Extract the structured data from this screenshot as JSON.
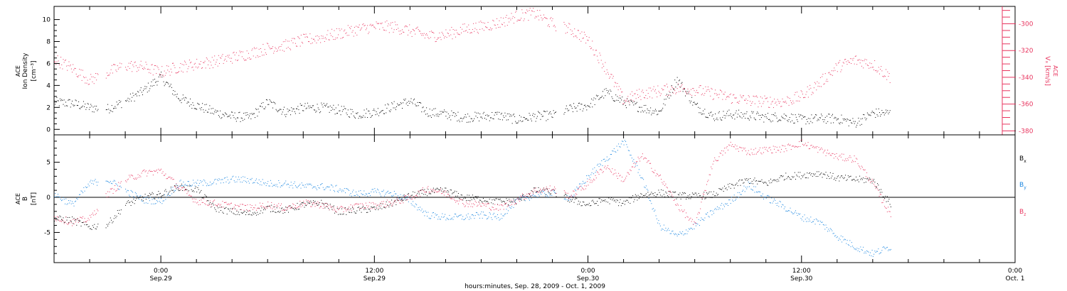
{
  "x_axis": {
    "title": "hours:minutes, Sep. 28, 2009 - Oct. 1, 2009",
    "ticks": [
      {
        "t": 24,
        "time": "0:00",
        "date": "Sep.29"
      },
      {
        "t": 36,
        "time": "12:00",
        "date": "Sep.29"
      },
      {
        "t": 48,
        "time": "0:00",
        "date": "Sep.30"
      },
      {
        "t": 60,
        "time": "12:00",
        "date": "Sep.30"
      },
      {
        "t": 72,
        "time": "0:00",
        "date": "Oct. 1"
      }
    ]
  },
  "colors": {
    "black": "#000000",
    "pink": "#e8355f",
    "blue": "#1a86e0"
  },
  "chart_data": [
    {
      "type": "scatter",
      "panel": "top",
      "ylabel": [
        "ACE",
        "Ion Density",
        "[cm⁻³]"
      ],
      "ylim": [
        -0.5,
        11.2
      ],
      "yticks": [
        0,
        2,
        4,
        6,
        8,
        10
      ],
      "right_axis": {
        "label": [
          "ACE",
          "Vₓ [km/s]"
        ],
        "ylim": [
          -383,
          -287
        ],
        "yticks": [
          -300,
          -320,
          -340,
          -360,
          -380
        ]
      },
      "xlim_hours_since_sep28": [
        18,
        72
      ],
      "series": [
        {
          "name": "density",
          "color": "#000000",
          "points": [
            [
              18,
              2.5
            ],
            [
              19,
              2.4
            ],
            [
              20,
              2.0
            ],
            [
              21,
              1.9
            ],
            [
              22,
              2.6
            ],
            [
              23,
              3.5
            ],
            [
              24,
              4.8
            ],
            [
              25,
              2.9
            ],
            [
              26,
              2.2
            ],
            [
              27,
              1.6
            ],
            [
              28,
              1.2
            ],
            [
              29,
              1.1
            ],
            [
              30,
              2.5
            ],
            [
              31,
              1.6
            ],
            [
              32,
              2.0
            ],
            [
              33,
              2.0
            ],
            [
              34,
              1.8
            ],
            [
              35,
              1.4
            ],
            [
              36,
              1.6
            ],
            [
              37,
              2.1
            ],
            [
              38,
              2.6
            ],
            [
              39,
              1.6
            ],
            [
              40,
              1.4
            ],
            [
              41,
              1.1
            ],
            [
              42,
              1.2
            ],
            [
              43,
              1.3
            ],
            [
              44,
              0.9
            ],
            [
              45,
              1.2
            ],
            [
              46,
              1.3
            ],
            [
              47,
              1.9
            ],
            [
              48,
              2.2
            ],
            [
              49,
              3.4
            ],
            [
              50,
              2.5
            ],
            [
              51,
              2.0
            ],
            [
              52,
              1.6
            ],
            [
              53,
              4.6
            ],
            [
              54,
              2.2
            ],
            [
              55,
              1.2
            ],
            [
              56,
              1.4
            ],
            [
              57,
              1.3
            ],
            [
              58,
              1.1
            ],
            [
              59,
              1.2
            ],
            [
              60,
              0.9
            ],
            [
              61,
              1.0
            ],
            [
              62,
              1.0
            ],
            [
              63,
              0.6
            ],
            [
              64,
              1.5
            ],
            [
              65,
              1.5
            ]
          ]
        },
        {
          "name": "Vx",
          "color": "#e8355f",
          "axis": "right",
          "points": [
            [
              18,
              -326
            ],
            [
              19,
              -333
            ],
            [
              20,
              -342
            ],
            [
              21,
              -336
            ],
            [
              22,
              -331
            ],
            [
              23,
              -332
            ],
            [
              24,
              -336
            ],
            [
              25,
              -332
            ],
            [
              26,
              -330
            ],
            [
              27,
              -328
            ],
            [
              28,
              -325
            ],
            [
              29,
              -322
            ],
            [
              30,
              -318
            ],
            [
              31,
              -316
            ],
            [
              32,
              -312
            ],
            [
              33,
              -310
            ],
            [
              34,
              -307
            ],
            [
              35,
              -304
            ],
            [
              36,
              -302
            ],
            [
              37,
              -302
            ],
            [
              38,
              -305
            ],
            [
              39,
              -309
            ],
            [
              40,
              -308
            ],
            [
              41,
              -304
            ],
            [
              42,
              -302
            ],
            [
              43,
              -299
            ],
            [
              44,
              -294
            ],
            [
              45,
              -292
            ],
            [
              46,
              -300
            ],
            [
              47,
              -304
            ],
            [
              48,
              -312
            ],
            [
              49,
              -333
            ],
            [
              50,
              -357
            ],
            [
              51,
              -352
            ],
            [
              52,
              -350
            ],
            [
              53,
              -348
            ],
            [
              54,
              -349
            ],
            [
              55,
              -352
            ],
            [
              56,
              -355
            ],
            [
              57,
              -357
            ],
            [
              58,
              -358
            ],
            [
              59,
              -358
            ],
            [
              60,
              -354
            ],
            [
              61,
              -344
            ],
            [
              62,
              -332
            ],
            [
              63,
              -327
            ],
            [
              64,
              -330
            ],
            [
              65,
              -340
            ]
          ]
        }
      ]
    },
    {
      "type": "scatter",
      "panel": "bottom",
      "ylabel": [
        "ACE",
        "B",
        "[nT]"
      ],
      "ylim": [
        -9.3,
        8.9
      ],
      "yticks": [
        -5,
        0,
        5
      ],
      "zero_line": true,
      "xlim_hours_since_sep28": [
        18,
        72
      ],
      "series": [
        {
          "name": "Bx",
          "color": "#000000",
          "points": [
            [
              18,
              -3
            ],
            [
              19,
              -3.2
            ],
            [
              20,
              -4.2
            ],
            [
              21,
              -3.8
            ],
            [
              22,
              -1
            ],
            [
              23,
              0
            ],
            [
              24,
              0.5
            ],
            [
              25,
              1.5
            ],
            [
              26,
              1.2
            ],
            [
              27,
              -1.5
            ],
            [
              28,
              -2
            ],
            [
              29,
              -2.3
            ],
            [
              30,
              -1.5
            ],
            [
              31,
              -1.8
            ],
            [
              32,
              -1
            ],
            [
              33,
              -0.8
            ],
            [
              34,
              -2
            ],
            [
              35,
              -1.8
            ],
            [
              36,
              -1.6
            ],
            [
              37,
              -0.8
            ],
            [
              38,
              0.3
            ],
            [
              39,
              0.8
            ],
            [
              40,
              1
            ],
            [
              41,
              0
            ],
            [
              42,
              -0.2
            ],
            [
              43,
              -0.6
            ],
            [
              44,
              -0.5
            ],
            [
              45,
              1
            ],
            [
              46,
              0.8
            ],
            [
              47,
              -0.3
            ],
            [
              48,
              -1
            ],
            [
              49,
              -0.3
            ],
            [
              50,
              -0.8
            ],
            [
              51,
              0.4
            ],
            [
              52,
              0.7
            ],
            [
              53,
              0.3
            ],
            [
              54,
              0.2
            ],
            [
              55,
              0.4
            ],
            [
              56,
              1.6
            ],
            [
              57,
              2.5
            ],
            [
              58,
              2
            ],
            [
              59,
              3
            ],
            [
              60,
              3.2
            ],
            [
              61,
              3.5
            ],
            [
              62,
              2.8
            ],
            [
              63,
              2.6
            ],
            [
              64,
              2.5
            ],
            [
              65,
              -1
            ]
          ]
        },
        {
          "name": "By",
          "color": "#1a86e0",
          "points": [
            [
              18,
              0.5
            ],
            [
              19,
              -1
            ],
            [
              20,
              2
            ],
            [
              21,
              2.6
            ],
            [
              22,
              1
            ],
            [
              23,
              -0.3
            ],
            [
              24,
              -0.5
            ],
            [
              25,
              2
            ],
            [
              26,
              2
            ],
            [
              27,
              2.2
            ],
            [
              28,
              2.6
            ],
            [
              29,
              2.5
            ],
            [
              30,
              2
            ],
            [
              31,
              2
            ],
            [
              32,
              1.6
            ],
            [
              33,
              1.6
            ],
            [
              34,
              1.2
            ],
            [
              35,
              0.5
            ],
            [
              36,
              0.8
            ],
            [
              37,
              0.6
            ],
            [
              38,
              -0.5
            ],
            [
              39,
              -2.5
            ],
            [
              40,
              -2.8
            ],
            [
              41,
              -2.8
            ],
            [
              42,
              -2.5
            ],
            [
              43,
              -2.8
            ],
            [
              44,
              -0.5
            ],
            [
              45,
              0.4
            ],
            [
              46,
              0.6
            ],
            [
              47,
              0
            ],
            [
              48,
              3
            ],
            [
              49,
              5.5
            ],
            [
              50,
              8
            ],
            [
              51,
              3
            ],
            [
              52,
              -4
            ],
            [
              53,
              -5.5
            ],
            [
              54,
              -4
            ],
            [
              55,
              -2
            ],
            [
              56,
              -0.5
            ],
            [
              57,
              1.8
            ],
            [
              58,
              0
            ],
            [
              59,
              -1.3
            ],
            [
              60,
              -2.8
            ],
            [
              61,
              -3.5
            ],
            [
              62,
              -5.5
            ],
            [
              63,
              -7
            ],
            [
              64,
              -8
            ],
            [
              65,
              -7
            ]
          ]
        },
        {
          "name": "Bz",
          "color": "#e8355f",
          "points": [
            [
              18,
              -2.8
            ],
            [
              19,
              -3.5
            ],
            [
              20,
              -3
            ],
            [
              21,
              0.5
            ],
            [
              22,
              2.5
            ],
            [
              23,
              3.5
            ],
            [
              24,
              3.8
            ],
            [
              25,
              1.5
            ],
            [
              26,
              -0.5
            ],
            [
              27,
              -0.8
            ],
            [
              28,
              -1.2
            ],
            [
              29,
              -1.5
            ],
            [
              30,
              -1
            ],
            [
              31,
              -1.5
            ],
            [
              32,
              -0.8
            ],
            [
              33,
              -1
            ],
            [
              34,
              -1.8
            ],
            [
              35,
              -1.2
            ],
            [
              36,
              -1.1
            ],
            [
              37,
              -0.7
            ],
            [
              38,
              0
            ],
            [
              39,
              1.3
            ],
            [
              40,
              0.6
            ],
            [
              41,
              -0.8
            ],
            [
              42,
              -1
            ],
            [
              43,
              -1.5
            ],
            [
              44,
              -0.3
            ],
            [
              45,
              1
            ],
            [
              46,
              1.3
            ],
            [
              47,
              0.2
            ],
            [
              48,
              2
            ],
            [
              49,
              4.5
            ],
            [
              50,
              2.5
            ],
            [
              51,
              6
            ],
            [
              52,
              3
            ],
            [
              53,
              -1
            ],
            [
              54,
              -4
            ],
            [
              55,
              5
            ],
            [
              56,
              7.5
            ],
            [
              57,
              6.5
            ],
            [
              58,
              6.8
            ],
            [
              59,
              7
            ],
            [
              60,
              7.8
            ],
            [
              61,
              6.8
            ],
            [
              62,
              5.8
            ],
            [
              63,
              5.5
            ],
            [
              64,
              2
            ],
            [
              65,
              -2.5
            ]
          ]
        }
      ],
      "legend": [
        {
          "label": "B",
          "sub": "x",
          "color": "#000000"
        },
        {
          "label": "B",
          "sub": "y",
          "color": "#1a86e0"
        },
        {
          "label": "B",
          "sub": "z",
          "color": "#e8355f"
        }
      ]
    }
  ]
}
